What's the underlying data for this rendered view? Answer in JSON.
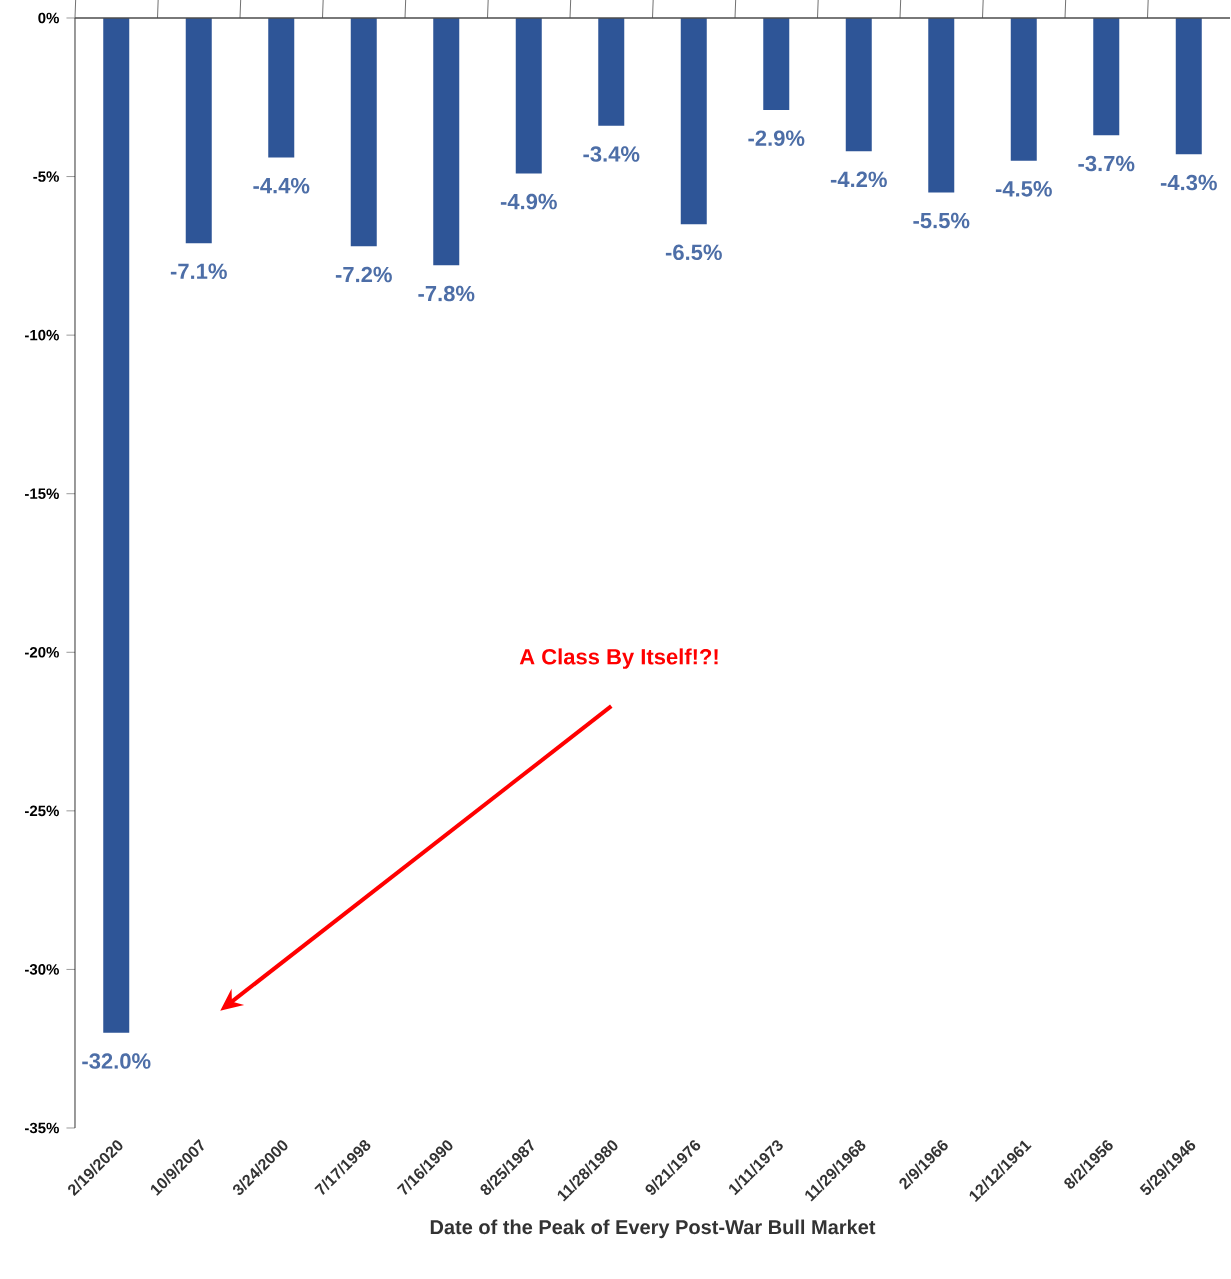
{
  "chart_data": {
    "type": "bar",
    "categories": [
      "2/19/2020",
      "10/9/2007",
      "3/24/2000",
      "7/17/1998",
      "7/16/1990",
      "8/25/1987",
      "11/28/1980",
      "9/21/1976",
      "1/11/1973",
      "11/29/1968",
      "2/9/1966",
      "12/12/1961",
      "8/2/1956",
      "5/29/1946"
    ],
    "values": [
      -32.0,
      -7.1,
      -4.4,
      -7.2,
      -7.8,
      -4.9,
      -3.4,
      -6.5,
      -2.9,
      -4.2,
      -5.5,
      -4.5,
      -3.7,
      -4.3
    ],
    "value_labels": [
      "-32.0%",
      "-7.1%",
      "-4.4%",
      "-7.2%",
      "-7.8%",
      "-4.9%",
      "-3.4%",
      "-6.5%",
      "-2.9%",
      "-4.2%",
      "-5.5%",
      "-4.5%",
      "-3.7%",
      "-4.3%"
    ],
    "color": "#2e5597",
    "xlabel": "Date of the Peak of Every Post-War Bull Market",
    "ylim": [
      -35,
      0
    ],
    "yticks": [
      {
        "value": -35,
        "label": "-35%"
      },
      {
        "value": -30,
        "label": "-30%"
      },
      {
        "value": -25,
        "label": "-25%"
      },
      {
        "value": -20,
        "label": "-20%"
      },
      {
        "value": -15,
        "label": "-15%"
      },
      {
        "value": -10,
        "label": "-10%"
      },
      {
        "value": -5,
        "label": "-5%"
      },
      {
        "value": 0,
        "label": "0%"
      }
    ],
    "annotations": [
      "A Class By Itself!?!"
    ]
  }
}
